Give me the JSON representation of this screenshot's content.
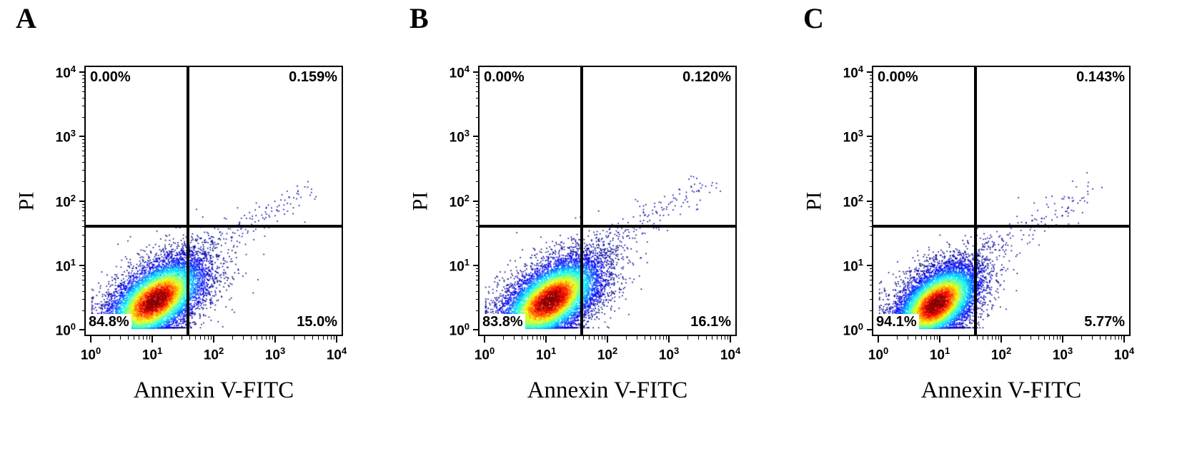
{
  "figure": {
    "x_axis_label": "Annexin V-FITC",
    "y_axis_label": "PI",
    "tick_base": "10",
    "x_tick_exponents": [
      "0",
      "1",
      "2",
      "3",
      "4"
    ],
    "y_tick_exponents": [
      "0",
      "1",
      "2",
      "3",
      "4"
    ],
    "panels": [
      {
        "label": "A",
        "quadrants": {
          "ul": "0.00%",
          "ur": "0.159%",
          "ll": "84.8%",
          "lr": "15.0%"
        }
      },
      {
        "label": "B",
        "quadrants": {
          "ul": "0.00%",
          "ur": "0.120%",
          "ll": "83.8%",
          "lr": "16.1%"
        }
      },
      {
        "label": "C",
        "quadrants": {
          "ul": "0.00%",
          "ur": "0.143%",
          "ll": "94.1%",
          "lr": "5.77%"
        }
      }
    ]
  },
  "chart_data": [
    {
      "type": "scatter",
      "panel": "A",
      "title": "A",
      "xlabel": "Annexin V-FITC",
      "ylabel": "PI",
      "xscale": "log",
      "yscale": "log",
      "xlim": [
        1,
        10000
      ],
      "ylim": [
        1,
        10000
      ],
      "x_ticks": [
        "10^0",
        "10^1",
        "10^2",
        "10^3",
        "10^4"
      ],
      "y_ticks": [
        "10^0",
        "10^1",
        "10^2",
        "10^3",
        "10^4"
      ],
      "gates": {
        "x": 38,
        "y": 40
      },
      "quadrant_percent": {
        "upper_left": 0.0,
        "upper_right": 0.159,
        "lower_left": 84.8,
        "lower_right": 15.0
      },
      "population": {
        "center_log10": [
          1.05,
          0.45
        ],
        "sigma_log10": [
          0.44,
          0.36
        ],
        "correlation": 0.55,
        "n_points": 9000
      },
      "tail": {
        "start_log10": [
          1.3,
          0.95
        ],
        "end_log10": [
          3.6,
          2.2
        ],
        "n_points": 260
      },
      "colormap": "jet-density",
      "seed": 11
    },
    {
      "type": "scatter",
      "panel": "B",
      "title": "B",
      "xlabel": "Annexin V-FITC",
      "ylabel": "PI",
      "xscale": "log",
      "yscale": "log",
      "xlim": [
        1,
        10000
      ],
      "ylim": [
        1,
        10000
      ],
      "x_ticks": [
        "10^0",
        "10^1",
        "10^2",
        "10^3",
        "10^4"
      ],
      "y_ticks": [
        "10^0",
        "10^1",
        "10^2",
        "10^3",
        "10^4"
      ],
      "gates": {
        "x": 38,
        "y": 40
      },
      "quadrant_percent": {
        "upper_left": 0.0,
        "upper_right": 0.12,
        "lower_left": 83.8,
        "lower_right": 16.1
      },
      "population": {
        "center_log10": [
          1.07,
          0.45
        ],
        "sigma_log10": [
          0.45,
          0.36
        ],
        "correlation": 0.55,
        "n_points": 9500
      },
      "tail": {
        "start_log10": [
          1.3,
          0.95
        ],
        "end_log10": [
          3.7,
          2.3
        ],
        "n_points": 280
      },
      "colormap": "jet-density",
      "seed": 22
    },
    {
      "type": "scatter",
      "panel": "C",
      "title": "C",
      "xlabel": "Annexin V-FITC",
      "ylabel": "PI",
      "xscale": "log",
      "yscale": "log",
      "xlim": [
        1,
        10000
      ],
      "ylim": [
        1,
        10000
      ],
      "x_ticks": [
        "10^0",
        "10^1",
        "10^2",
        "10^3",
        "10^4"
      ],
      "y_ticks": [
        "10^0",
        "10^1",
        "10^2",
        "10^3",
        "10^4"
      ],
      "gates": {
        "x": 38,
        "y": 40
      },
      "quadrant_percent": {
        "upper_left": 0.0,
        "upper_right": 0.143,
        "lower_left": 94.1,
        "lower_right": 5.77
      },
      "population": {
        "center_log10": [
          0.95,
          0.4
        ],
        "sigma_log10": [
          0.38,
          0.33
        ],
        "correlation": 0.5,
        "n_points": 9000
      },
      "tail": {
        "start_log10": [
          1.25,
          0.9
        ],
        "end_log10": [
          3.5,
          2.15
        ],
        "n_points": 210
      },
      "colormap": "jet-density",
      "seed": 33
    }
  ]
}
